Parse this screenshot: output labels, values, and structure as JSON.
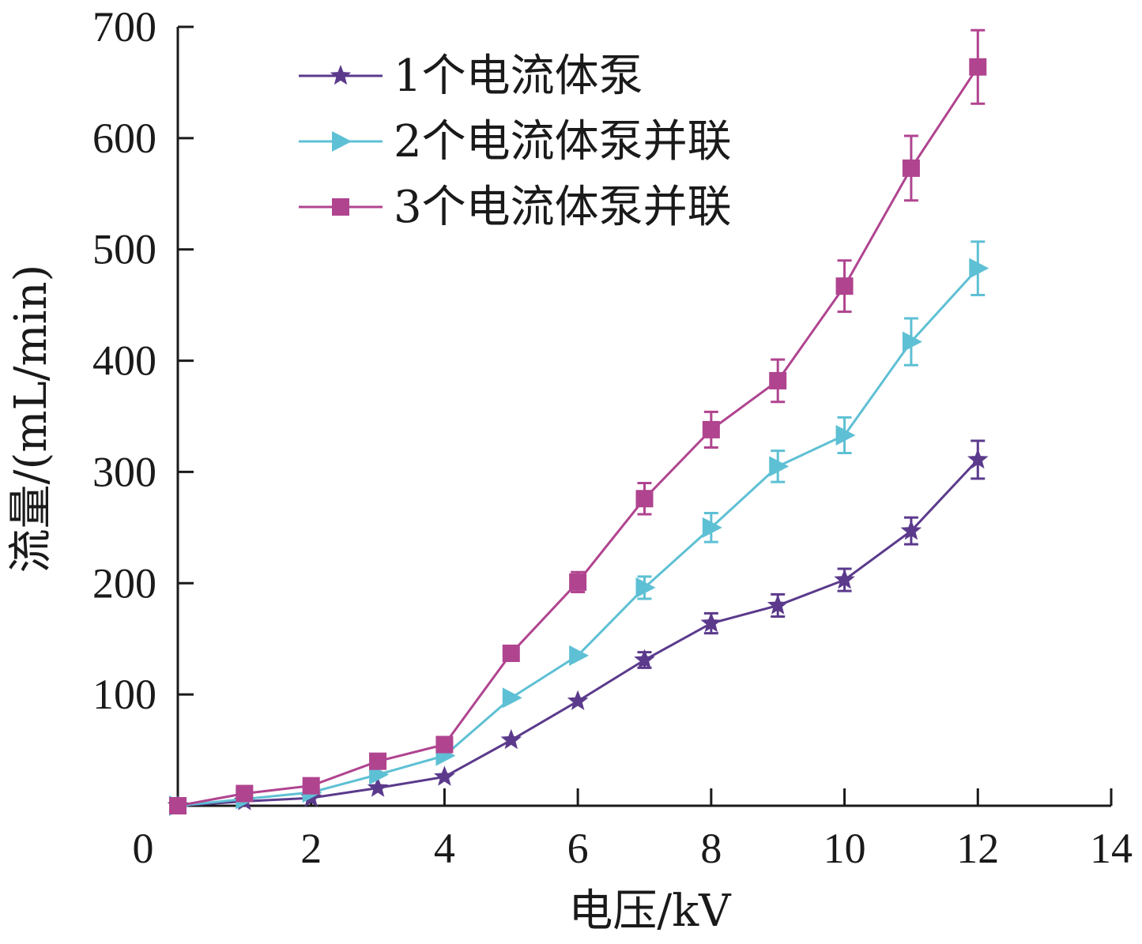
{
  "chart_data": {
    "type": "line",
    "title": "",
    "xlabel": "电压/kV",
    "ylabel": "流量/(mL/min)",
    "xlim": [
      0,
      14
    ],
    "ylim": [
      0,
      700
    ],
    "xticks": [
      0,
      2,
      4,
      6,
      8,
      10,
      12,
      14
    ],
    "yticks": [
      100,
      200,
      300,
      400,
      500,
      600,
      700
    ],
    "grid": false,
    "legend_position": "top-left",
    "series": [
      {
        "name": "1个电流体泵",
        "color": "#5b3a8c",
        "marker": "star",
        "x": [
          0,
          1,
          2,
          3,
          4,
          5,
          6,
          7,
          8,
          9,
          10,
          11,
          12
        ],
        "y": [
          0,
          4,
          7,
          16,
          26,
          59,
          94,
          131,
          164,
          180,
          203,
          247,
          311
        ],
        "err": [
          0,
          0,
          0,
          0,
          0,
          0,
          0,
          7,
          9,
          10,
          10,
          12,
          17
        ]
      },
      {
        "name": "2个电流体泵并联",
        "color": "#5ec0d4",
        "marker": "triangle-right",
        "x": [
          0,
          1,
          2,
          3,
          4,
          5,
          6,
          7,
          8,
          9,
          10,
          11,
          12
        ],
        "y": [
          0,
          6,
          12,
          28,
          45,
          97,
          135,
          196,
          250,
          305,
          333,
          417,
          483
        ],
        "err": [
          0,
          0,
          0,
          0,
          0,
          0,
          0,
          10,
          13,
          14,
          16,
          21,
          24
        ]
      },
      {
        "name": "3个电流体泵并联",
        "color": "#b0448f",
        "marker": "square",
        "x": [
          0,
          1,
          2,
          3,
          4,
          5,
          6,
          7,
          8,
          9,
          10,
          11,
          12
        ],
        "y": [
          0,
          11,
          18,
          40,
          55,
          137,
          201,
          276,
          338,
          382,
          467,
          573,
          664
        ],
        "err": [
          0,
          0,
          0,
          0,
          0,
          0,
          9,
          14,
          16,
          19,
          23,
          29,
          33
        ]
      }
    ]
  }
}
